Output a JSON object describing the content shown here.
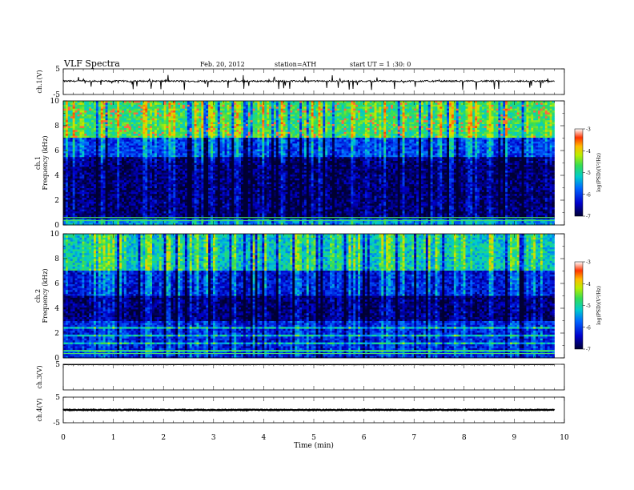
{
  "header": {
    "title": "VLF  Spectra",
    "date": "Feb. 20, 2012",
    "station": "station=ATH",
    "start": "start  UT  =   1  :30: 0"
  },
  "chart_data": [
    {
      "type": "line",
      "ylabel": "ch.1(V)",
      "ylim": [
        -5,
        5
      ],
      "yticks": [
        "5",
        "-5"
      ],
      "baseline": 0.2,
      "noise": 0.3,
      "spikes": "many negative spikes"
    },
    {
      "type": "heatmap",
      "ylabel_top": "ch.1",
      "ylabel": "Frequency  (kHz)",
      "ylim": [
        0,
        10
      ],
      "yticks": [
        "0",
        "2",
        "4",
        "6",
        "8",
        "10"
      ],
      "colorbar": {
        "label": "log(PSD)(V²/Hz)",
        "ticks": [
          "-3",
          "-4",
          "-5",
          "-6",
          "-7"
        ],
        "range": [
          -7,
          -3
        ]
      },
      "description_levels": {
        "0-0.5kHz": -5.5,
        "0.5-5.5kHz": -6.8,
        "5.5-7kHz": -6.0,
        "7-10kHz": -4.8
      }
    },
    {
      "type": "heatmap",
      "ylabel_top": "ch.2",
      "ylabel": "Frequency  (kHz)",
      "ylim": [
        0,
        10
      ],
      "yticks": [
        "0",
        "2",
        "4",
        "6",
        "8",
        "10"
      ],
      "colorbar": {
        "label": "log(PSD)(V²/Hz)",
        "ticks": [
          "-3",
          "-4",
          "-5",
          "-6",
          "-7"
        ],
        "range": [
          -7,
          -3
        ]
      },
      "description_levels": {
        "0-3kHz": -6.2,
        "3-5kHz": -6.8,
        "5-7kHz": -6.3,
        "7-10kHz": -5.2
      }
    },
    {
      "type": "line",
      "ylabel": "ch.3(V)",
      "ylim": [
        -5,
        5
      ],
      "yticks": [
        "5"
      ],
      "baseline": 4.8,
      "noise": 0.05
    },
    {
      "type": "line",
      "ylabel": "ch.4(V)",
      "ylim": [
        -5,
        5
      ],
      "yticks": [
        "5",
        "-5"
      ],
      "baseline": 0.0,
      "noise": 0.15
    }
  ],
  "xaxis": {
    "label": "Time  (min)",
    "xlim": [
      0,
      10
    ],
    "ticks": [
      "0",
      "1",
      "2",
      "3",
      "4",
      "5",
      "6",
      "7",
      "8",
      "9",
      "10"
    ],
    "data_end": 9.8
  }
}
